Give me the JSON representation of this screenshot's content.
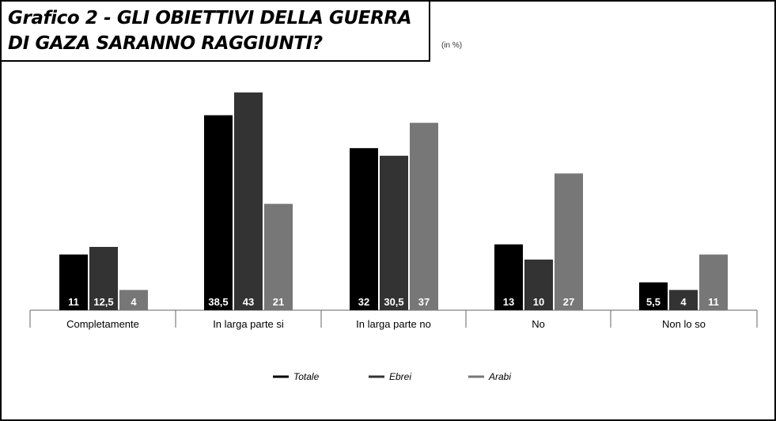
{
  "chart_data": {
    "type": "bar",
    "title_line1": "Grafico 2 - GLI OBIETTIVI DELLA GUERRA",
    "title_line2": "DI GAZA SARANNO RAGGIUNTI?",
    "unit_note": "(in %)",
    "categories": [
      "Completamente",
      "In larga parte si",
      "In larga parte no",
      "No",
      "Non lo so"
    ],
    "series": [
      {
        "name": "Totale",
        "color": "#000000",
        "values": [
          11,
          38.5,
          32,
          13,
          5.5
        ],
        "labels": [
          "11",
          "38,5",
          "32",
          "13",
          "5,5"
        ]
      },
      {
        "name": "Ebrei",
        "color": "#333333",
        "values": [
          12.5,
          43,
          30.5,
          10,
          4
        ],
        "labels": [
          "12,5",
          "43",
          "30,5",
          "10",
          "4"
        ]
      },
      {
        "name": "Arabi",
        "color": "#777777",
        "values": [
          4,
          21,
          37,
          27,
          11
        ],
        "labels": [
          "4",
          "21",
          "37",
          "27",
          "11"
        ]
      }
    ],
    "legend_position": "bottom",
    "grid": false
  }
}
